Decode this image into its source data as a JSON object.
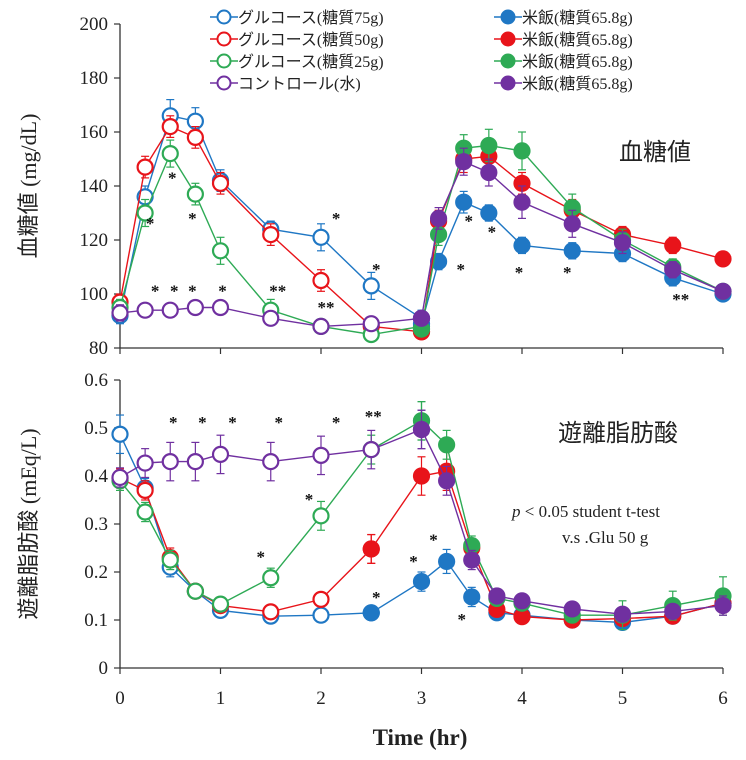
{
  "colors": {
    "blue": "#1f77c4",
    "red": "#e8141a",
    "green": "#2eaa55",
    "purple": "#7030a0",
    "axis": "#333333"
  },
  "chart_data": [
    {
      "type": "line",
      "panel": "top",
      "title": "血糖値",
      "ylabel": "血糖値 (mg/dL)",
      "xlabel": "",
      "xlim": [
        0,
        6
      ],
      "ylim": [
        80,
        200
      ],
      "xticks": [
        "0",
        "1",
        "2",
        "3",
        "4",
        "5",
        "6"
      ],
      "yticks": [
        "80",
        "100",
        "120",
        "140",
        "160",
        "180",
        "200"
      ],
      "series": [
        {
          "name": "グルコース(糖質75g)",
          "color": "blue",
          "filled": false,
          "x": [
            0,
            0.25,
            0.5,
            0.75,
            1,
            1.5,
            2,
            2.5,
            3
          ],
          "y": [
            92,
            136,
            166,
            164,
            142,
            124,
            121,
            103,
            91
          ],
          "err": [
            3,
            4,
            6,
            5,
            4,
            3,
            5,
            5,
            3
          ]
        },
        {
          "name": "グルコース(糖質50g)",
          "color": "red",
          "filled": false,
          "x": [
            0,
            0.25,
            0.5,
            0.75,
            1,
            1.5,
            2,
            2.5,
            3
          ],
          "y": [
            97,
            147,
            162,
            158,
            141,
            122,
            105,
            88,
            86
          ],
          "err": [
            3,
            4,
            4,
            4,
            4,
            4,
            4,
            3,
            2
          ]
        },
        {
          "name": "グルコース(糖質25g)",
          "color": "green",
          "filled": false,
          "x": [
            0,
            0.25,
            0.5,
            0.75,
            1,
            1.5,
            2,
            2.5,
            3
          ],
          "y": [
            95,
            130,
            152,
            137,
            116,
            94,
            88,
            85,
            88
          ],
          "err": [
            3,
            5,
            5,
            4,
            5,
            4,
            2,
            2,
            2
          ]
        },
        {
          "name": "コントロール(水)",
          "color": "purple",
          "filled": false,
          "x": [
            0,
            0.25,
            0.5,
            0.75,
            1,
            1.5,
            2,
            2.5,
            3
          ],
          "y": [
            93,
            94,
            94,
            95,
            95,
            91,
            88,
            89,
            91
          ],
          "err": [
            3,
            2,
            2,
            2,
            2,
            2,
            2,
            2,
            2
          ]
        },
        {
          "name": "米飯(糖質65.8g)",
          "color": "blue",
          "filled": true,
          "x": [
            3,
            3.17,
            3.42,
            3.67,
            4,
            4.5,
            5,
            5.5,
            6
          ],
          "y": [
            89,
            112,
            134,
            130,
            118,
            116,
            115,
            106,
            100
          ],
          "err": [
            2,
            3,
            4,
            3,
            3,
            3,
            3,
            3,
            2
          ]
        },
        {
          "name": "米飯(糖質65.8g)",
          "color": "red",
          "filled": true,
          "x": [
            3,
            3.17,
            3.42,
            3.67,
            4,
            4.5,
            5,
            5.5,
            6
          ],
          "y": [
            86,
            127,
            150,
            151,
            141,
            131,
            122,
            118,
            113
          ],
          "err": [
            2,
            4,
            5,
            4,
            4,
            4,
            3,
            3,
            2
          ]
        },
        {
          "name": "米飯(糖質65.8g)",
          "color": "green",
          "filled": true,
          "x": [
            3,
            3.17,
            3.42,
            3.67,
            4,
            4.5,
            5,
            5.5,
            6
          ],
          "y": [
            87,
            122,
            154,
            155,
            153,
            132,
            120,
            110,
            101
          ],
          "err": [
            2,
            4,
            5,
            6,
            7,
            5,
            4,
            3,
            2
          ]
        },
        {
          "name": "米飯(糖質65.8g)",
          "color": "purple",
          "filled": true,
          "x": [
            3,
            3.17,
            3.42,
            3.67,
            4,
            4.5,
            5,
            5.5,
            6
          ],
          "y": [
            91,
            128,
            149,
            145,
            134,
            126,
            119,
            109,
            101
          ],
          "err": [
            2,
            4,
            5,
            5,
            6,
            5,
            4,
            3,
            2
          ]
        }
      ],
      "annotations": [
        {
          "text": "*",
          "x": 0.3,
          "y": 124
        },
        {
          "text": "*",
          "x": 0.52,
          "y": 141
        },
        {
          "text": "*",
          "x": 0.72,
          "y": 126
        },
        {
          "text": "*",
          "x": 2.15,
          "y": 126
        },
        {
          "text": "*",
          "x": 2.55,
          "y": 107
        },
        {
          "text": "*",
          "x": 0.35,
          "y": 99
        },
        {
          "text": "*",
          "x": 0.54,
          "y": 99
        },
        {
          "text": "*",
          "x": 0.72,
          "y": 99
        },
        {
          "text": "*",
          "x": 1.02,
          "y": 99
        },
        {
          "text": "**",
          "x": 1.57,
          "y": 99
        },
        {
          "text": "**",
          "x": 2.05,
          "y": 93
        },
        {
          "text": "*",
          "x": 3.47,
          "y": 125
        },
        {
          "text": "*",
          "x": 3.7,
          "y": 121
        },
        {
          "text": "*",
          "x": 3.39,
          "y": 107
        },
        {
          "text": "*",
          "x": 3.97,
          "y": 106
        },
        {
          "text": "*",
          "x": 4.45,
          "y": 106
        },
        {
          "text": "**",
          "x": 5.58,
          "y": 96
        }
      ]
    },
    {
      "type": "line",
      "panel": "bottom",
      "title": "遊離脂肪酸",
      "ylabel": "遊離脂肪酸 (mEq/L)",
      "xlabel": "Time (hr)",
      "xlim": [
        0,
        6
      ],
      "ylim": [
        0,
        0.6
      ],
      "xticks": [
        "0",
        "1",
        "2",
        "3",
        "4",
        "5",
        "6"
      ],
      "yticks": [
        "0",
        "0.1",
        "0.2",
        "0.3",
        "0.4",
        "0.5",
        "0.6"
      ],
      "note_p": "p",
      "note_rest": " < 0.05 student t-test",
      "note_line2": "v.s .Glu 50 g",
      "series": [
        {
          "name": "グルコース(糖質75g)",
          "color": "blue",
          "filled": false,
          "x": [
            0,
            0.25,
            0.5,
            0.75,
            1,
            1.5,
            2,
            2.5
          ],
          "y": [
            0.487,
            0.375,
            0.21,
            0.16,
            0.12,
            0.108,
            0.11,
            0.115
          ],
          "err": [
            0.04,
            0.02,
            0.02,
            0.01,
            0.01,
            0.01,
            0.01,
            0.01
          ]
        },
        {
          "name": "グルコース(糖質50g)",
          "color": "red",
          "filled": false,
          "x": [
            0,
            0.25,
            0.5,
            0.75,
            1,
            1.5,
            2,
            2.5
          ],
          "y": [
            0.395,
            0.37,
            0.23,
            0.16,
            0.13,
            0.117,
            0.143,
            0.248
          ],
          "err": [
            0.02,
            0.02,
            0.02,
            0.01,
            0.01,
            0.01,
            0.01,
            0.03
          ]
        },
        {
          "name": "グルコース(糖質25g)",
          "color": "green",
          "filled": false,
          "x": [
            0,
            0.25,
            0.5,
            0.75,
            1,
            1.5,
            2,
            2.5,
            3
          ],
          "y": [
            0.39,
            0.325,
            0.225,
            0.16,
            0.133,
            0.188,
            0.317,
            0.455,
            0.515
          ],
          "err": [
            0.02,
            0.02,
            0.02,
            0.01,
            0.01,
            0.02,
            0.03,
            0.03,
            0.04
          ]
        },
        {
          "name": "コントロール(水)",
          "color": "purple",
          "filled": false,
          "x": [
            0,
            0.25,
            0.5,
            0.75,
            1,
            1.5,
            2,
            2.5,
            3
          ],
          "y": [
            0.397,
            0.427,
            0.43,
            0.43,
            0.445,
            0.43,
            0.443,
            0.455,
            0.497
          ],
          "err": [
            0.02,
            0.03,
            0.04,
            0.04,
            0.04,
            0.04,
            0.04,
            0.04,
            0.04
          ]
        },
        {
          "name": "米飯(糖質65.8g)",
          "color": "blue",
          "filled": true,
          "x": [
            2.5,
            3,
            3.25,
            3.5,
            3.75,
            4,
            4.5,
            5,
            5.5,
            6
          ],
          "y": [
            0.115,
            0.18,
            0.222,
            0.148,
            0.115,
            0.11,
            0.1,
            0.095,
            0.108,
            0.135
          ],
          "err": [
            0.01,
            0.02,
            0.025,
            0.02,
            0.01,
            0.01,
            0.01,
            0.01,
            0.01,
            0.02
          ]
        },
        {
          "name": "米飯(糖質65.8g)",
          "color": "red",
          "filled": true,
          "x": [
            2.5,
            3,
            3.25,
            3.5,
            3.75,
            4,
            4.5,
            5,
            5.5,
            6
          ],
          "y": [
            0.248,
            0.4,
            0.41,
            0.25,
            0.122,
            0.107,
            0.1,
            0.103,
            0.108,
            0.135
          ],
          "err": [
            0.03,
            0.04,
            0.04,
            0.02,
            0.01,
            0.01,
            0.01,
            0.01,
            0.01,
            0.02
          ]
        },
        {
          "name": "米飯(糖質65.8g)",
          "color": "green",
          "filled": true,
          "x": [
            3,
            3.25,
            3.5,
            3.75,
            4,
            4.5,
            5,
            5.5,
            6
          ],
          "y": [
            0.515,
            0.465,
            0.255,
            0.145,
            0.135,
            0.11,
            0.11,
            0.13,
            0.15
          ],
          "err": [
            0.04,
            0.03,
            0.02,
            0.01,
            0.01,
            0.01,
            0.03,
            0.03,
            0.04
          ]
        },
        {
          "name": "米飯(糖質65.8g)",
          "color": "purple",
          "filled": true,
          "x": [
            3,
            3.25,
            3.5,
            3.75,
            4,
            4.5,
            5,
            5.5,
            6
          ],
          "y": [
            0.497,
            0.39,
            0.225,
            0.15,
            0.14,
            0.123,
            0.112,
            0.118,
            0.13
          ],
          "err": [
            0.04,
            0.03,
            0.02,
            0.01,
            0.01,
            0.01,
            0.01,
            0.01,
            0.02
          ]
        }
      ],
      "annotations": [
        {
          "text": "*",
          "x": 0.53,
          "y": 0.5
        },
        {
          "text": "*",
          "x": 0.82,
          "y": 0.5
        },
        {
          "text": "*",
          "x": 1.12,
          "y": 0.5
        },
        {
          "text": "*",
          "x": 1.58,
          "y": 0.5
        },
        {
          "text": "*",
          "x": 2.15,
          "y": 0.5
        },
        {
          "text": "**",
          "x": 2.52,
          "y": 0.512
        },
        {
          "text": "*",
          "x": 1.4,
          "y": 0.22
        },
        {
          "text": "*",
          "x": 1.88,
          "y": 0.34
        },
        {
          "text": "*",
          "x": 2.55,
          "y": 0.135
        },
        {
          "text": "*",
          "x": 2.92,
          "y": 0.21
        },
        {
          "text": "*",
          "x": 3.12,
          "y": 0.255
        },
        {
          "text": "*",
          "x": 3.4,
          "y": 0.09
        }
      ]
    }
  ],
  "legend": {
    "left": [
      {
        "label": "グルコース(糖質75g)",
        "color": "blue",
        "filled": false
      },
      {
        "label": "グルコース(糖質50g)",
        "color": "red",
        "filled": false
      },
      {
        "label": "グルコース(糖質25g)",
        "color": "green",
        "filled": false
      },
      {
        "label": "コントロール(水)",
        "color": "purple",
        "filled": false
      }
    ],
    "right": [
      {
        "label": "米飯(糖質65.8g)",
        "color": "blue",
        "filled": true
      },
      {
        "label": "米飯(糖質65.8g)",
        "color": "red",
        "filled": true
      },
      {
        "label": "米飯(糖質65.8g)",
        "color": "green",
        "filled": true
      },
      {
        "label": "米飯(糖質65.8g)",
        "color": "purple",
        "filled": true
      }
    ]
  }
}
